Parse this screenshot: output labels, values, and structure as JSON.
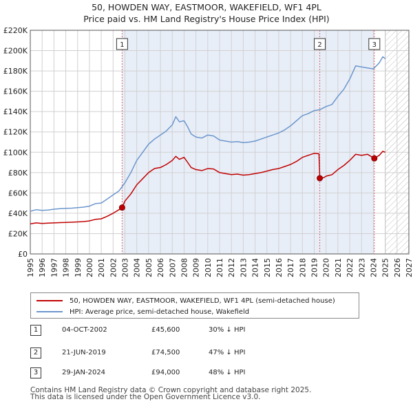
{
  "title": {
    "line1": "50, HOWDEN WAY, EASTMOOR, WAKEFIELD, WF1 4PL",
    "line2": "Price paid vs. HM Land Registry's House Price Index (HPI)"
  },
  "colors": {
    "price": "#c00000",
    "hpi": "#6b96cc",
    "shade": "#e8eef8",
    "grid": "#d0d0d0",
    "marker_line": "#e06060",
    "future_hatch": "#bbbbbb"
  },
  "chart_data": {
    "type": "line",
    "xlim": [
      1995,
      2027
    ],
    "ylim": [
      0,
      220000
    ],
    "x_ticks": [
      "1995",
      "1996",
      "1997",
      "1998",
      "1999",
      "2000",
      "2001",
      "2002",
      "2003",
      "2004",
      "2005",
      "2006",
      "2007",
      "2008",
      "2009",
      "2010",
      "2011",
      "2012",
      "2013",
      "2014",
      "2015",
      "2016",
      "2017",
      "2018",
      "2019",
      "2020",
      "2021",
      "2022",
      "2023",
      "2024",
      "2025",
      "2026",
      "2027"
    ],
    "y_ticks": [
      {
        "value": 0,
        "label": "£0"
      },
      {
        "value": 20000,
        "label": "£20K"
      },
      {
        "value": 40000,
        "label": "£40K"
      },
      {
        "value": 60000,
        "label": "£60K"
      },
      {
        "value": 80000,
        "label": "£80K"
      },
      {
        "value": 100000,
        "label": "£100K"
      },
      {
        "value": 120000,
        "label": "£120K"
      },
      {
        "value": 140000,
        "label": "£140K"
      },
      {
        "value": 160000,
        "label": "£160K"
      },
      {
        "value": 180000,
        "label": "£180K"
      },
      {
        "value": 200000,
        "label": "£200K"
      },
      {
        "value": 220000,
        "label": "£220K"
      }
    ],
    "shaded_range": [
      2002.76,
      2024.08
    ],
    "future_from": 2025.0,
    "series": [
      {
        "name": "50, HOWDEN WAY, EASTMOOR, WAKEFIELD, WF1 4PL (semi-detached house)",
        "key": "price",
        "points": [
          [
            1995.0,
            29500
          ],
          [
            1995.5,
            30500
          ],
          [
            1996.0,
            30000
          ],
          [
            1996.5,
            30300
          ],
          [
            1997.0,
            30500
          ],
          [
            1997.5,
            30800
          ],
          [
            1998.0,
            31000
          ],
          [
            1998.5,
            31200
          ],
          [
            1999.0,
            31500
          ],
          [
            1999.5,
            31800
          ],
          [
            2000.0,
            32500
          ],
          [
            2000.5,
            34000
          ],
          [
            2001.0,
            34500
          ],
          [
            2001.5,
            37000
          ],
          [
            2002.0,
            40000
          ],
          [
            2002.5,
            43500
          ],
          [
            2002.76,
            45600
          ],
          [
            2003.0,
            52000
          ],
          [
            2003.5,
            59000
          ],
          [
            2004.0,
            68000
          ],
          [
            2004.5,
            74000
          ],
          [
            2005.0,
            80000
          ],
          [
            2005.5,
            84000
          ],
          [
            2006.0,
            85000
          ],
          [
            2006.5,
            88000
          ],
          [
            2007.0,
            92000
          ],
          [
            2007.3,
            96000
          ],
          [
            2007.6,
            93000
          ],
          [
            2008.0,
            95000
          ],
          [
            2008.3,
            90000
          ],
          [
            2008.6,
            85000
          ],
          [
            2009.0,
            83000
          ],
          [
            2009.5,
            82000
          ],
          [
            2010.0,
            84000
          ],
          [
            2010.5,
            83500
          ],
          [
            2011.0,
            80000
          ],
          [
            2011.5,
            79000
          ],
          [
            2012.0,
            78000
          ],
          [
            2012.5,
            78500
          ],
          [
            2013.0,
            77500
          ],
          [
            2013.5,
            78000
          ],
          [
            2014.0,
            79000
          ],
          [
            2014.5,
            80000
          ],
          [
            2015.0,
            81500
          ],
          [
            2015.5,
            83000
          ],
          [
            2016.0,
            84000
          ],
          [
            2016.5,
            86000
          ],
          [
            2017.0,
            88000
          ],
          [
            2017.5,
            91000
          ],
          [
            2018.0,
            95000
          ],
          [
            2018.5,
            97000
          ],
          [
            2019.0,
            99000
          ],
          [
            2019.4,
            98500
          ],
          [
            2019.47,
            74500
          ],
          [
            2019.8,
            75000
          ],
          [
            2020.0,
            76500
          ],
          [
            2020.5,
            78000
          ],
          [
            2021.0,
            83000
          ],
          [
            2021.5,
            87000
          ],
          [
            2022.0,
            92000
          ],
          [
            2022.5,
            98000
          ],
          [
            2023.0,
            97000
          ],
          [
            2023.5,
            98000
          ],
          [
            2024.08,
            94000
          ],
          [
            2024.5,
            97000
          ],
          [
            2024.8,
            101000
          ],
          [
            2025.0,
            100000
          ]
        ]
      },
      {
        "name": "HPI: Average price, semi-detached house, Wakefield",
        "key": "hpi",
        "points": [
          [
            1995.0,
            42000
          ],
          [
            1995.5,
            43500
          ],
          [
            1996.0,
            42800
          ],
          [
            1996.5,
            43200
          ],
          [
            1997.0,
            44000
          ],
          [
            1997.5,
            44500
          ],
          [
            1998.0,
            44800
          ],
          [
            1998.5,
            45000
          ],
          [
            1999.0,
            45500
          ],
          [
            1999.5,
            46000
          ],
          [
            2000.0,
            47000
          ],
          [
            2000.5,
            49500
          ],
          [
            2001.0,
            50000
          ],
          [
            2001.5,
            54000
          ],
          [
            2002.0,
            58000
          ],
          [
            2002.5,
            62000
          ],
          [
            2003.0,
            70000
          ],
          [
            2003.5,
            80000
          ],
          [
            2004.0,
            92000
          ],
          [
            2004.5,
            100000
          ],
          [
            2005.0,
            108000
          ],
          [
            2005.5,
            113000
          ],
          [
            2006.0,
            117000
          ],
          [
            2006.5,
            121000
          ],
          [
            2007.0,
            127000
          ],
          [
            2007.3,
            135000
          ],
          [
            2007.6,
            130000
          ],
          [
            2008.0,
            131000
          ],
          [
            2008.3,
            125000
          ],
          [
            2008.6,
            118000
          ],
          [
            2009.0,
            115000
          ],
          [
            2009.5,
            114000
          ],
          [
            2010.0,
            117000
          ],
          [
            2010.5,
            116000
          ],
          [
            2011.0,
            112000
          ],
          [
            2011.5,
            111000
          ],
          [
            2012.0,
            110000
          ],
          [
            2012.5,
            110500
          ],
          [
            2013.0,
            109500
          ],
          [
            2013.5,
            110000
          ],
          [
            2014.0,
            111000
          ],
          [
            2014.5,
            113000
          ],
          [
            2015.0,
            115000
          ],
          [
            2015.5,
            117000
          ],
          [
            2016.0,
            119000
          ],
          [
            2016.5,
            122000
          ],
          [
            2017.0,
            126000
          ],
          [
            2017.5,
            131000
          ],
          [
            2018.0,
            136000
          ],
          [
            2018.5,
            138000
          ],
          [
            2019.0,
            141000
          ],
          [
            2019.5,
            142000
          ],
          [
            2020.0,
            145000
          ],
          [
            2020.5,
            147000
          ],
          [
            2021.0,
            155000
          ],
          [
            2021.5,
            162000
          ],
          [
            2022.0,
            172000
          ],
          [
            2022.5,
            185000
          ],
          [
            2023.0,
            184000
          ],
          [
            2023.5,
            183000
          ],
          [
            2024.0,
            182000
          ],
          [
            2024.5,
            188000
          ],
          [
            2024.8,
            194000
          ],
          [
            2025.0,
            192000
          ]
        ]
      }
    ],
    "sales": [
      {
        "num": "1",
        "x": 2002.76,
        "y": 45600
      },
      {
        "num": "2",
        "x": 2019.47,
        "y": 74500
      },
      {
        "num": "3",
        "x": 2024.08,
        "y": 94000
      }
    ]
  },
  "legend": {
    "price_label": "50, HOWDEN WAY, EASTMOOR, WAKEFIELD, WF1 4PL (semi-detached house)",
    "hpi_label": "HPI: Average price, semi-detached house, Wakefield"
  },
  "sales_table": [
    {
      "num": "1",
      "date": "04-OCT-2002",
      "price": "£45,600",
      "hpi": "30% ↓ HPI"
    },
    {
      "num": "2",
      "date": "21-JUN-2019",
      "price": "£74,500",
      "hpi": "47% ↓ HPI"
    },
    {
      "num": "3",
      "date": "29-JAN-2024",
      "price": "£94,000",
      "hpi": "48% ↓ HPI"
    }
  ],
  "footer": {
    "line1": "Contains HM Land Registry data © Crown copyright and database right 2025.",
    "line2": "This data is licensed under the Open Government Licence v3.0."
  }
}
